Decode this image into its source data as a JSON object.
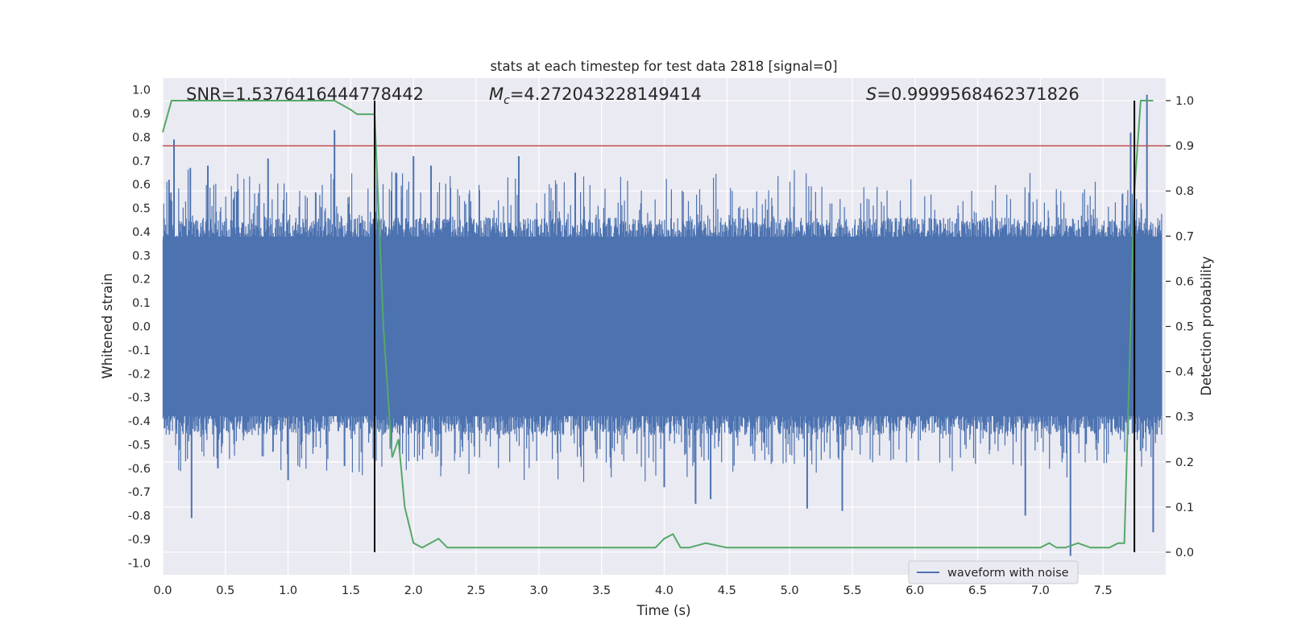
{
  "chart_data": {
    "type": "line",
    "title": "stats at each timestep for test data 2818 [signal=0]",
    "xlabel": "Time (s)",
    "ylabel": "Whitened strain",
    "ylabel_right": "Detection probability",
    "xlim": [
      0.0,
      8.0
    ],
    "ylim": [
      -1.05,
      1.05
    ],
    "ylim_right": [
      -0.05,
      1.05
    ],
    "x_ticks": [
      "0.0",
      "0.5",
      "1.0",
      "1.5",
      "2.0",
      "2.5",
      "3.0",
      "3.5",
      "4.0",
      "4.5",
      "5.0",
      "5.5",
      "6.0",
      "6.5",
      "7.0",
      "7.5"
    ],
    "y_ticks": [
      "1.0",
      "0.9",
      "0.8",
      "0.7",
      "0.6",
      "0.5",
      "0.4",
      "0.3",
      "0.2",
      "0.1",
      "0.0",
      "-0.1",
      "-0.2",
      "-0.3",
      "-0.4",
      "-0.5",
      "-0.6",
      "-0.7",
      "-0.8",
      "-0.9",
      "-1.0"
    ],
    "y_ticks_right": [
      "1.0",
      "0.9",
      "0.8",
      "0.7",
      "0.6",
      "0.5",
      "0.4",
      "0.3",
      "0.2",
      "0.1",
      "0.0"
    ],
    "grid": true,
    "legend_position": "lower-right",
    "annotations": {
      "snr": "SNR=1.5376416444778442",
      "mc_symbol": "M",
      "mc_sub": "c",
      "mc_value": "=4.272043228149414",
      "s_symbol": "S",
      "s_value": "=0.9999568462371826"
    },
    "threshold": 0.9,
    "vertical_markers": [
      1.69,
      7.75
    ],
    "series": [
      {
        "name": "waveform with noise",
        "axis": "left",
        "color": "#4c72b0",
        "envelope_note": "dense noise, roughly within ±0.45 with spikes",
        "spikes": [
          {
            "x": 0.05,
            "y": 0.62
          },
          {
            "x": 0.09,
            "y": 0.79
          },
          {
            "x": 0.22,
            "y": 0.67
          },
          {
            "x": 0.23,
            "y": -0.81
          },
          {
            "x": 0.36,
            "y": 0.68
          },
          {
            "x": 0.44,
            "y": -0.6
          },
          {
            "x": 0.59,
            "y": 0.57
          },
          {
            "x": 0.84,
            "y": 0.71
          },
          {
            "x": 1.0,
            "y": -0.65
          },
          {
            "x": 1.37,
            "y": 0.83
          },
          {
            "x": 1.45,
            "y": -0.59
          },
          {
            "x": 1.86,
            "y": 0.65
          },
          {
            "x": 2.0,
            "y": 0.72
          },
          {
            "x": 2.14,
            "y": 0.68
          },
          {
            "x": 2.84,
            "y": 0.72
          },
          {
            "x": 3.29,
            "y": 0.65
          },
          {
            "x": 4.0,
            "y": -0.68
          },
          {
            "x": 4.25,
            "y": -0.75
          },
          {
            "x": 4.37,
            "y": -0.73
          },
          {
            "x": 5.14,
            "y": -0.77
          },
          {
            "x": 5.42,
            "y": -0.78
          },
          {
            "x": 6.88,
            "y": -0.8
          },
          {
            "x": 7.24,
            "y": -0.97
          },
          {
            "x": 7.72,
            "y": 0.82
          },
          {
            "x": 7.85,
            "y": 0.98
          },
          {
            "x": 7.9,
            "y": -0.87
          }
        ]
      },
      {
        "name": "",
        "axis": "right",
        "color": "#55a868",
        "x": [
          0.0,
          0.07,
          0.2,
          0.5,
          1.0,
          1.37,
          1.5,
          1.55,
          1.63,
          1.69,
          1.76,
          1.83,
          1.88,
          1.93,
          2.0,
          2.07,
          2.2,
          2.27,
          2.5,
          3.0,
          3.5,
          3.93,
          4.0,
          4.07,
          4.13,
          4.2,
          4.33,
          4.5,
          5.0,
          5.5,
          6.0,
          6.5,
          7.0,
          7.07,
          7.13,
          7.2,
          7.3,
          7.4,
          7.55,
          7.62,
          7.67,
          7.72,
          7.75,
          7.8,
          7.85,
          7.9
        ],
        "values": [
          0.93,
          1.0,
          1.0,
          1.0,
          1.0,
          1.0,
          0.98,
          0.97,
          0.97,
          0.97,
          0.5,
          0.21,
          0.25,
          0.1,
          0.02,
          0.01,
          0.03,
          0.01,
          0.01,
          0.01,
          0.01,
          0.01,
          0.03,
          0.04,
          0.01,
          0.01,
          0.02,
          0.01,
          0.01,
          0.01,
          0.01,
          0.01,
          0.01,
          0.02,
          0.01,
          0.01,
          0.02,
          0.01,
          0.01,
          0.02,
          0.02,
          0.5,
          0.8,
          1.0,
          1.0,
          1.0
        ]
      }
    ]
  }
}
